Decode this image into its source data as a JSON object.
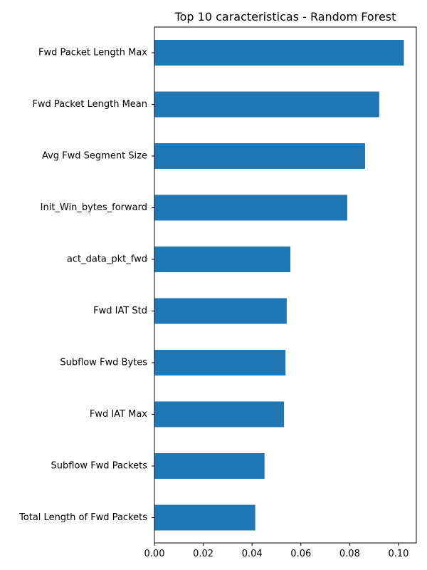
{
  "chart_data": {
    "type": "bar",
    "orientation": "horizontal",
    "title": "Top 10 caracteristicas - Random Forest",
    "xlabel": "",
    "ylabel": "",
    "categories": [
      "Fwd Packet Length Max",
      "Fwd Packet Length Mean",
      "Avg Fwd Segment Size",
      "Init_Win_bytes_forward",
      "act_data_pkt_fwd",
      "Fwd IAT Std",
      "Subflow Fwd Bytes",
      "Fwd IAT Max",
      "Subflow Fwd Packets",
      "Total Length of Fwd Packets"
    ],
    "values": [
      0.1022,
      0.0921,
      0.0863,
      0.079,
      0.0557,
      0.0542,
      0.0537,
      0.0531,
      0.0451,
      0.0413
    ],
    "xlim": [
      0.0,
      0.1073
    ],
    "xticks": [
      0.0,
      0.02,
      0.04,
      0.06,
      0.08,
      0.1
    ],
    "xtick_labels": [
      "0.00",
      "0.02",
      "0.04",
      "0.06",
      "0.08",
      "0.10"
    ],
    "bar_color": "#1f77b4",
    "grid": false,
    "legend": "none"
  }
}
